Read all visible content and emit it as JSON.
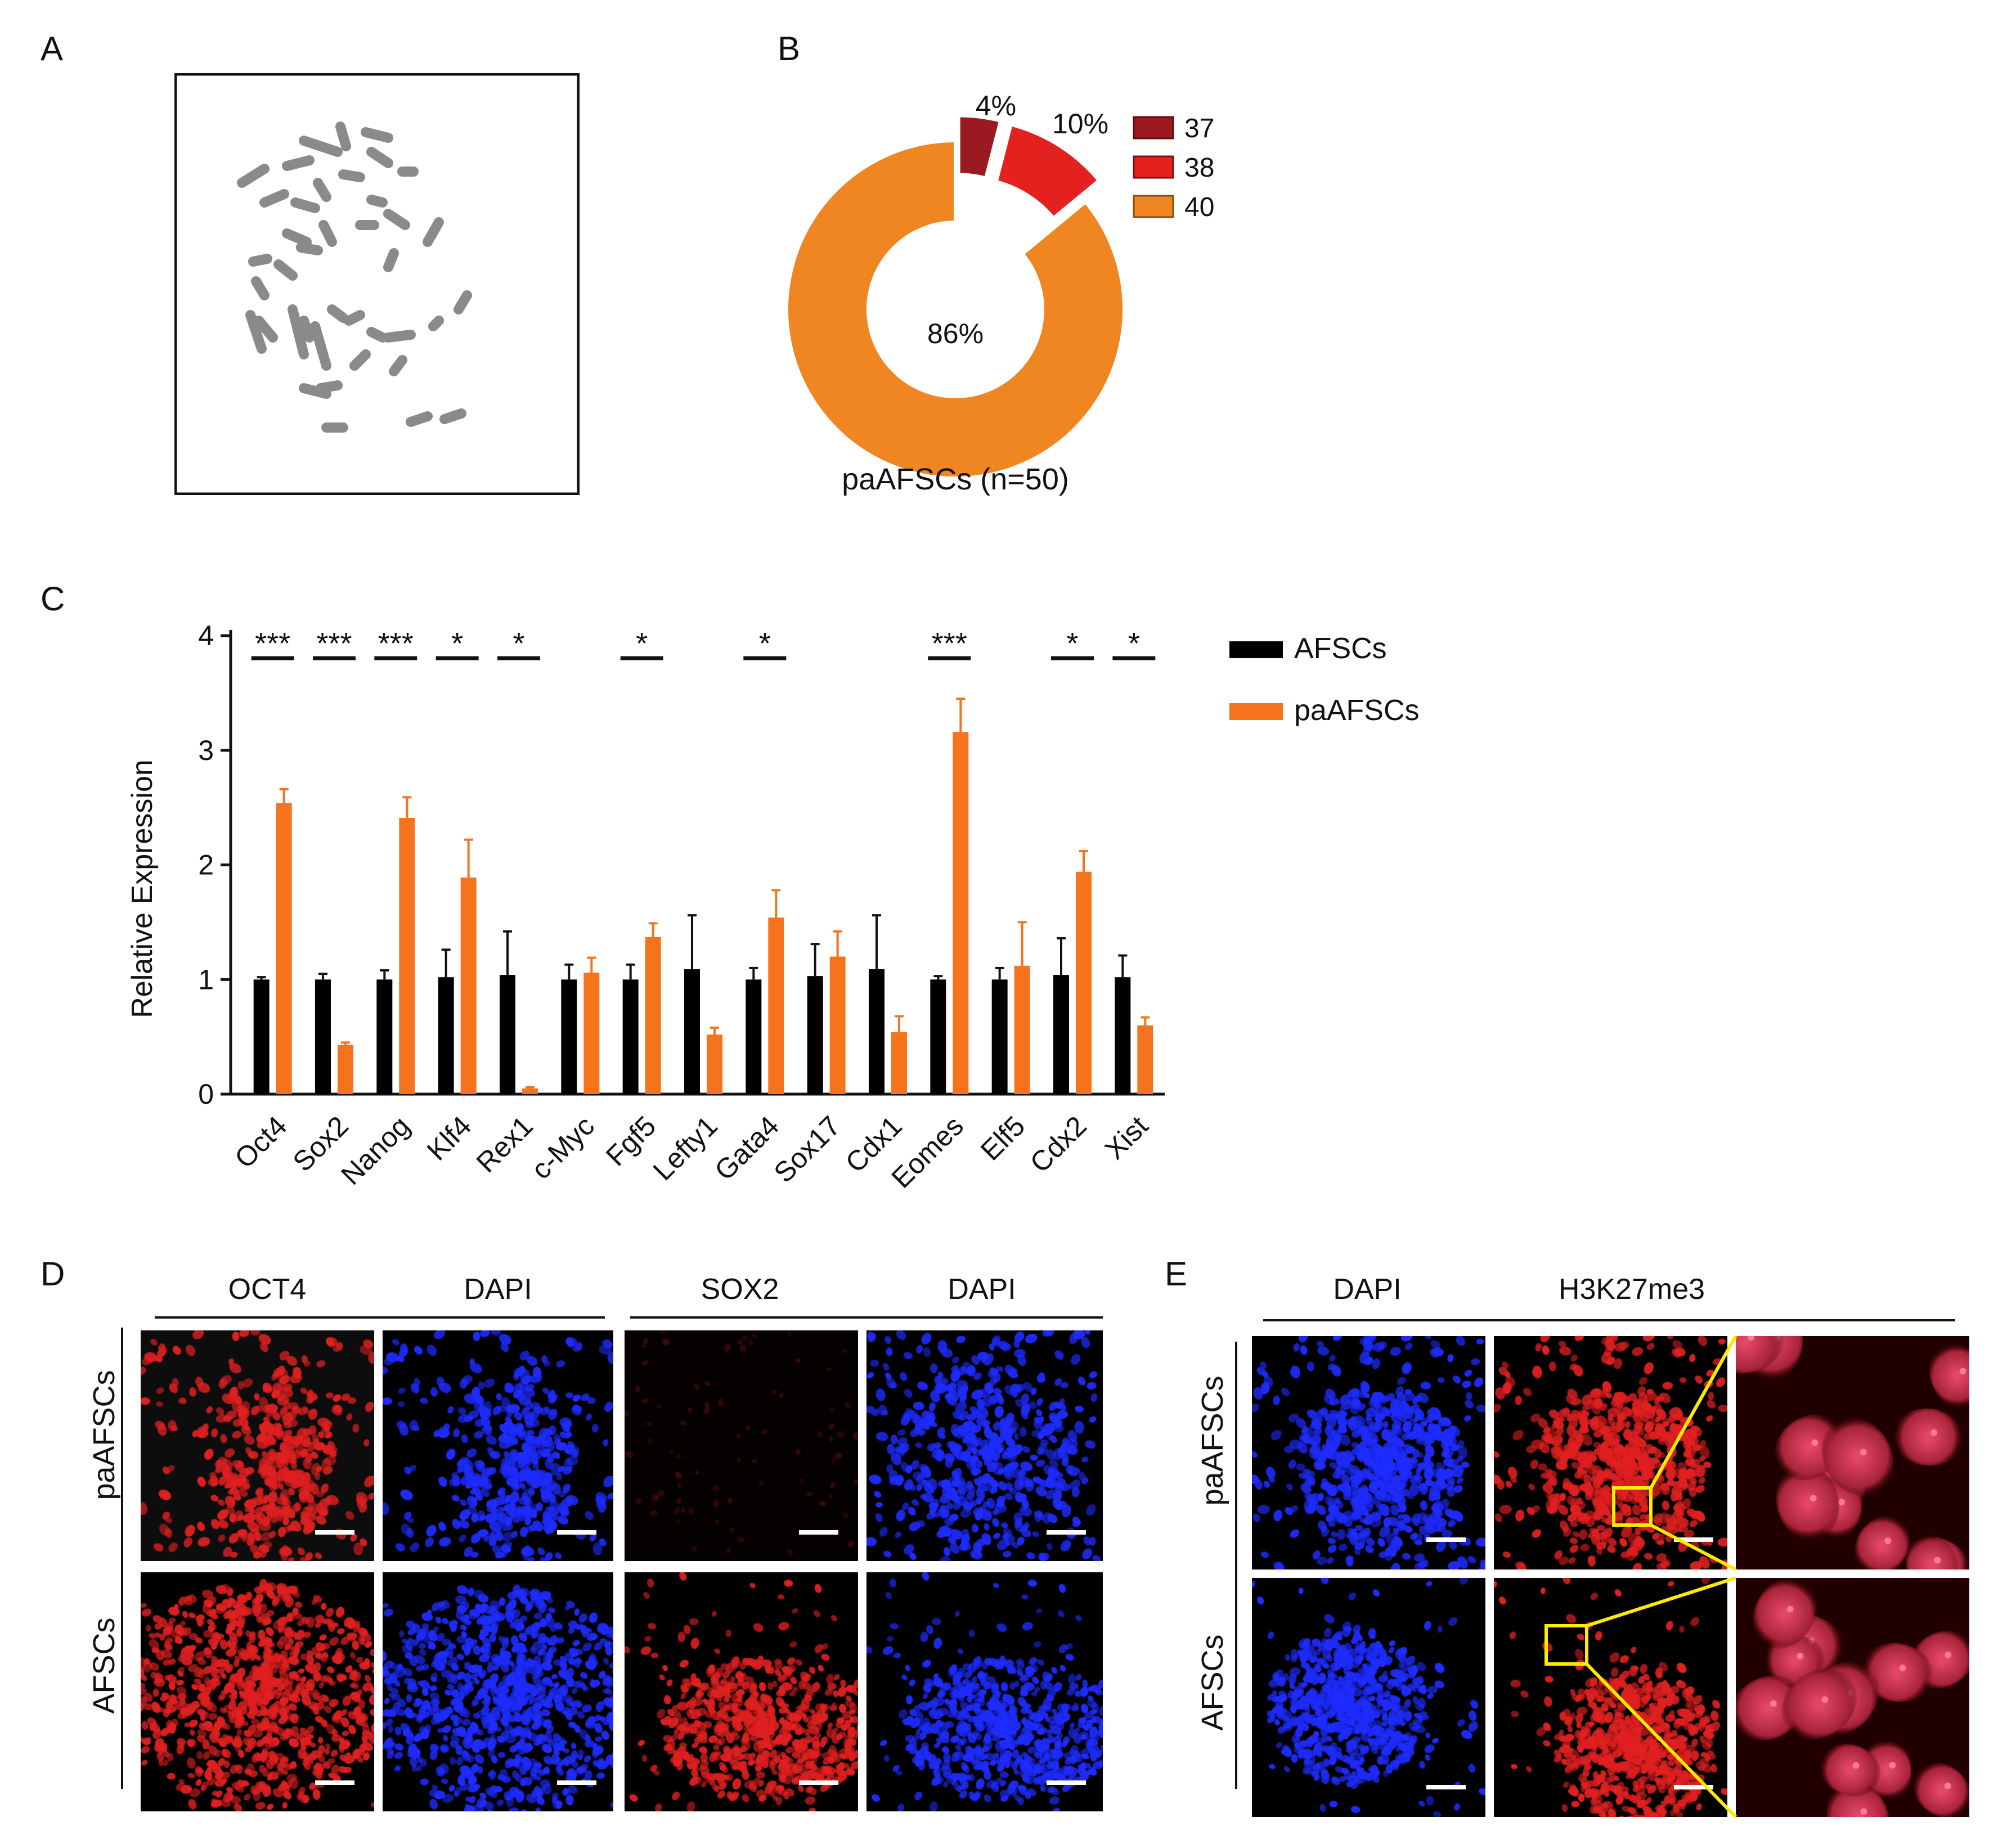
{
  "panels": {
    "A": "A",
    "B": "B",
    "C": "C",
    "D": "D",
    "E": "E"
  },
  "pie": {
    "chart_data": {
      "type": "pie",
      "title": "paAFSCs (n=50)",
      "slices": [
        {
          "label": "37",
          "percent": 4,
          "display": "4%",
          "color": "#9b1a22"
        },
        {
          "label": "38",
          "percent": 10,
          "display": "10%",
          "color": "#e3211f"
        },
        {
          "label": "40",
          "percent": 86,
          "display": "86%",
          "color": "#ef8622"
        }
      ]
    }
  },
  "bar": {
    "chart_data": {
      "type": "bar",
      "ylabel": "Relative Expression",
      "ylim": [
        0,
        4
      ],
      "yticks": [
        "0",
        "1",
        "2",
        "3",
        "4"
      ],
      "categories": [
        "Oct4",
        "Sox2",
        "Nanog",
        "Klf4",
        "Rex1",
        "c-Myc",
        "Fgf5",
        "Lefty1",
        "Gata4",
        "Sox17",
        "Cdx1",
        "Eomes",
        "Elf5",
        "Cdx2",
        "Xist"
      ],
      "series": [
        {
          "name": "AFSCs",
          "color": "#000000",
          "values": [
            1.0,
            1.0,
            1.0,
            1.02,
            1.04,
            1.0,
            1.0,
            1.09,
            1.0,
            1.03,
            1.09,
            1.0,
            1.0,
            1.04,
            1.02
          ],
          "errors": [
            0.02,
            0.05,
            0.08,
            0.24,
            0.38,
            0.13,
            0.13,
            0.47,
            0.1,
            0.28,
            0.47,
            0.03,
            0.1,
            0.32,
            0.19
          ]
        },
        {
          "name": "paAFSCs",
          "color": "#f4731c",
          "values": [
            2.54,
            0.43,
            2.41,
            1.89,
            0.05,
            1.06,
            1.37,
            0.52,
            1.54,
            1.2,
            0.54,
            3.16,
            1.12,
            1.94,
            0.6
          ],
          "errors": [
            0.12,
            0.02,
            0.18,
            0.33,
            0.01,
            0.13,
            0.12,
            0.06,
            0.24,
            0.22,
            0.14,
            0.29,
            0.38,
            0.18,
            0.07
          ]
        }
      ],
      "significance": [
        "***",
        "***",
        "***",
        "*",
        "*",
        "",
        "*",
        "",
        "*",
        "",
        "",
        "***",
        "",
        "*",
        "*"
      ]
    }
  },
  "panelD": {
    "headers": [
      "OCT4",
      "DAPI",
      "SOX2",
      "DAPI"
    ],
    "rows": [
      "paAFSCs",
      "AFSCs"
    ]
  },
  "panelE": {
    "headers": [
      "DAPI",
      "H3K27me3"
    ],
    "rows": [
      "paAFSCs",
      "AFSCs"
    ]
  },
  "colors": {
    "red_stain": "#e02020",
    "blue_stain": "#1e2cff",
    "zoom_box": "#ffeb00"
  }
}
